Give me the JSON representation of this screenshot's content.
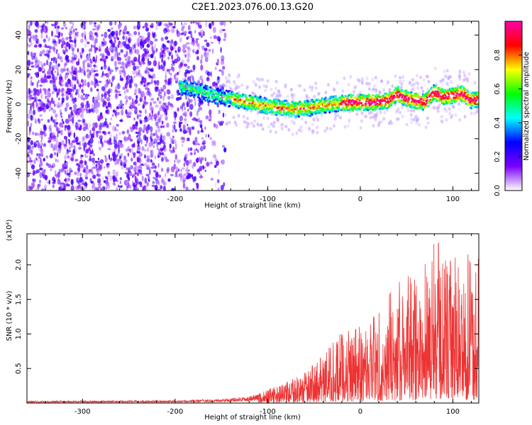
{
  "title": "C2E1.2023.076.00.13.G20",
  "chart_data": [
    {
      "type": "heatmap",
      "xlabel": "Height of straight line (km)",
      "ylabel": "Frequency (Hz)",
      "xlim": [
        -360,
        128
      ],
      "ylim": [
        -50,
        48
      ],
      "xticks": [
        -300,
        -200,
        -100,
        0,
        100
      ],
      "xtick_labels": [
        "-300",
        "-200",
        "-100",
        "0",
        "100"
      ],
      "yticks": [
        -40,
        -20,
        0,
        20,
        40
      ],
      "ytick_labels": [
        "-40",
        "-20",
        "0",
        "20",
        "40"
      ],
      "colorbar": {
        "label": "Normalized spectral amplitude",
        "range": [
          0,
          1
        ],
        "ticks": [
          0.0,
          0.2,
          0.4,
          0.6,
          0.8
        ],
        "tick_labels": [
          "0.0",
          "0.2",
          "0.4",
          "0.6",
          "0.8"
        ],
        "colors": [
          "#ffffff",
          "#7a00ff",
          "#0000ff",
          "#00ffff",
          "#00ff00",
          "#ffff00",
          "#ff0000",
          "#ff00aa"
        ]
      },
      "ridge": {
        "x": [
          -190,
          -170,
          -150,
          -130,
          -110,
          -90,
          -70,
          -50,
          -30,
          -10,
          10,
          30,
          40,
          50,
          60,
          70,
          80,
          90,
          100,
          110,
          120,
          128
        ],
        "y": [
          10,
          7,
          4,
          2,
          0,
          -2,
          -3,
          -2,
          0,
          1,
          1,
          2,
          6,
          3,
          2,
          1,
          7,
          4,
          5,
          6,
          2,
          3
        ]
      }
    },
    {
      "type": "line",
      "xlabel": "Height of straight line (km)",
      "ylabel": "SNR (10 * v/v)",
      "y_multiplier_label": "(x10⁴)",
      "xlim": [
        -360,
        128
      ],
      "ylim": [
        0,
        2.45
      ],
      "xticks": [
        -300,
        -200,
        -100,
        0,
        100
      ],
      "xtick_labels": [
        "-300",
        "-200",
        "-100",
        "0",
        "100"
      ],
      "yticks": [
        0.5,
        1.0,
        1.5,
        2.0
      ],
      "ytick_labels": [
        "0.5",
        "1.0",
        "1.5",
        "2.0"
      ],
      "series": [
        {
          "color": "#ee3333",
          "envelope_x": [
            -360,
            -200,
            -150,
            -120,
            -100,
            -80,
            -60,
            -40,
            -20,
            0,
            20,
            40,
            60,
            80,
            100,
            128
          ],
          "envelope_y": [
            0.03,
            0.04,
            0.06,
            0.1,
            0.2,
            0.3,
            0.45,
            0.7,
            1.05,
            1.15,
            1.4,
            1.75,
            1.9,
            2.4,
            2.1,
            2.2
          ]
        }
      ]
    }
  ]
}
